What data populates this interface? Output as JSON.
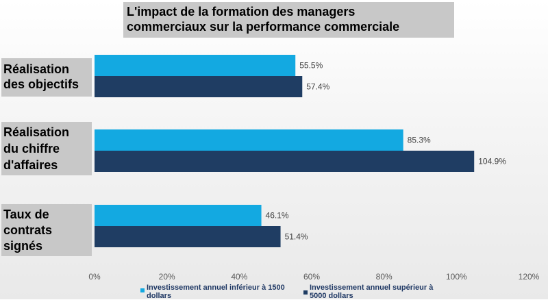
{
  "chart_data": {
    "type": "bar",
    "orientation": "horizontal",
    "title_lines": [
      "L'impact de la formation des managers",
      "commerciaux sur la performance commerciale"
    ],
    "categories": [
      [
        "Réalisation",
        "des objectifs"
      ],
      [
        "Réalisation",
        "du chiffre",
        "d'affaires"
      ],
      [
        "Taux de",
        "contrats",
        "signés"
      ]
    ],
    "series": [
      {
        "name_lines": [
          "Investissement annuel inférieur à 1500",
          "dollars"
        ],
        "color": "#13a9e1",
        "values": [
          55.5,
          85.3,
          46.1
        ],
        "labels": [
          "55.5%",
          "85.3%",
          "46.1%"
        ]
      },
      {
        "name_lines": [
          "Investissement annuel supérieur à",
          "5000 dollars"
        ],
        "color": "#1f3d63",
        "values": [
          57.4,
          104.9,
          51.4
        ],
        "labels": [
          "57.4%",
          "104.9%",
          "51.4%"
        ]
      }
    ],
    "x_ticks": [
      0,
      20,
      40,
      60,
      80,
      100,
      120
    ],
    "x_tick_labels": [
      "0%",
      "20%",
      "40%",
      "60%",
      "80%",
      "100%",
      "120%"
    ],
    "xlim": [
      0,
      120
    ],
    "grid": false,
    "legend_position": "bottom"
  }
}
